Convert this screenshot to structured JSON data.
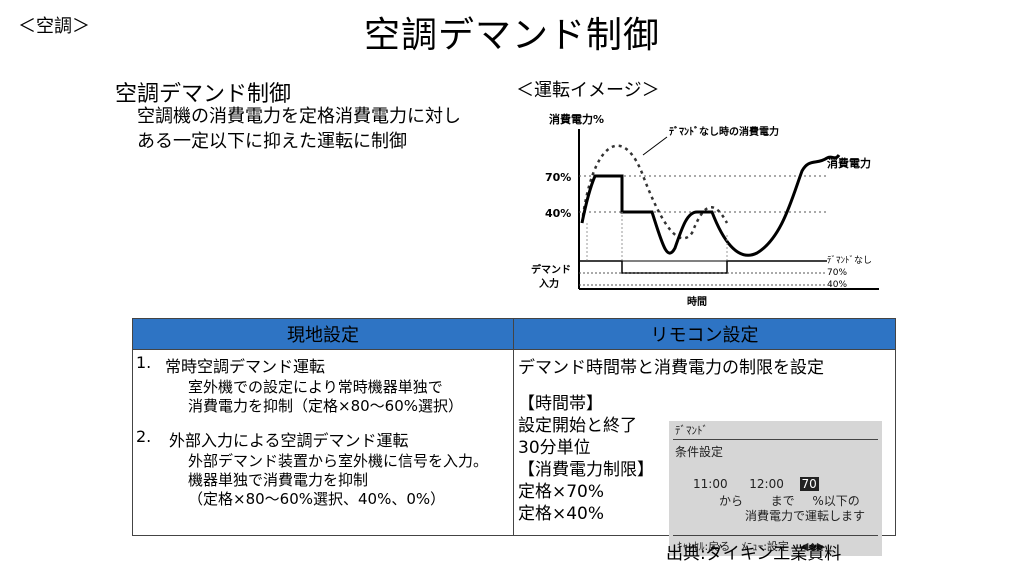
{
  "header": {
    "tag": "＜空調＞",
    "title": "空調デマンド制御"
  },
  "intro": {
    "subtitle": "空調デマンド制御",
    "desc_line1": "空調機の消費電力を定格消費電力に対し",
    "desc_line2": "ある一定以下に抑えた運転に制御"
  },
  "operation_image": {
    "label": "＜運転イメージ＞",
    "y_label": "消費電力%",
    "annotation": "ﾃﾞﾏﾝﾄﾞなし時の消費電力",
    "series_label": "消費電力",
    "tick_70": "70%",
    "tick_40": "40%",
    "demand_input_1": "デマンド",
    "demand_input_2": "入力",
    "legend_none": "ﾃﾞﾏﾝﾄﾞなし",
    "legend_70": "70%",
    "legend_40": "40%",
    "x_label": "時間"
  },
  "table": {
    "col_left": "現地設定",
    "col_right": "リモコン設定",
    "left": {
      "item1_num": "1.",
      "item1_title": "常時空調デマンド運転",
      "item1_l1": "室外機での設定により常時機器単独で",
      "item1_l2": "消費電力を抑制（定格×80〜60%選択）",
      "item2_num": "2.",
      "item2_title": "外部入力による空調デマンド運転",
      "item2_l1": "外部デマンド装置から室外機に信号を入力。",
      "item2_l2": "機器単独で消費電力を抑制",
      "item2_l3": "（定格×80〜60%選択、40%、0%）"
    },
    "right": {
      "heading": "デマンド時間帯と消費電力の制限を設定",
      "l1": "【時間帯】",
      "l2": "設定開始と終了",
      "l3": "30分単位",
      "l4": "【消費電力制限】",
      "l5": "定格×70%",
      "l6": "定格×40%"
    },
    "remote": {
      "header": "ﾃﾞﾏﾝﾄﾞ",
      "subheader": "条件設定",
      "start": "11:00",
      "end": "12:00",
      "value": "70",
      "from": "から",
      "until": "まで",
      "pct": "%以下の",
      "msg": "消費電力で運転します",
      "footer": "ｷｬﾝｾﾙ:戻る　ﾒﾆｭｰ:設定　◀◆▶"
    }
  },
  "source": "出典:ダイキン工業資料"
}
